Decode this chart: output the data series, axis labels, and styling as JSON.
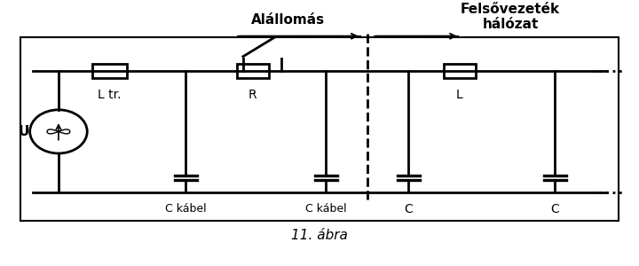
{
  "title": "11. ábra",
  "alallomas_label": "Alállomás",
  "felsovezeték_label": "Felsővezeték\nhálózat",
  "components": {
    "U_label": "U",
    "Ltr_label": "L tr.",
    "R_label": "R",
    "L_label": "L",
    "Ckabel1_label": "C kábel",
    "Ckabel2_label": "C kábel",
    "C1_label": "C",
    "C2_label": "C"
  },
  "line_color": "#000000",
  "bg_color": "#ffffff",
  "box_color": "#ffffff",
  "dashed_color": "#000000",
  "lw": 2.0,
  "fig_width": 7.2,
  "fig_height": 3.0
}
